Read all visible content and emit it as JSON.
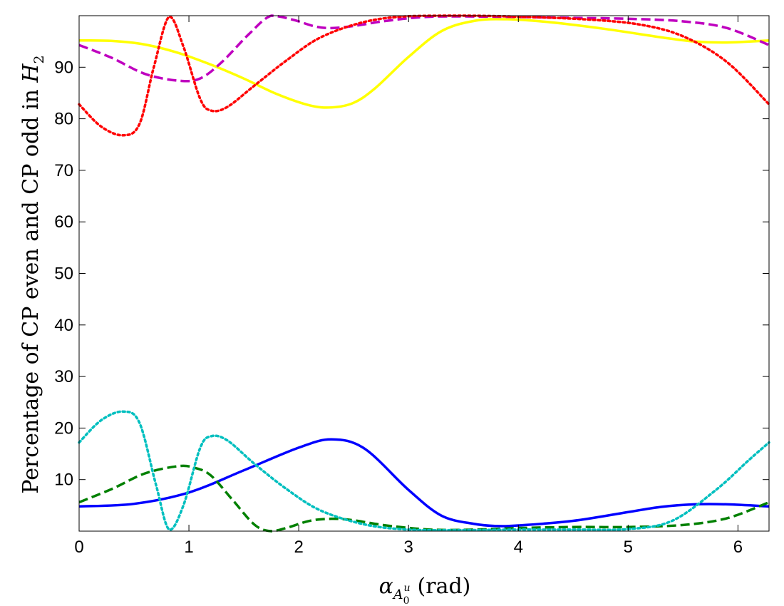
{
  "chart_data": {
    "type": "line",
    "title": "",
    "xlabel": {
      "main": "α",
      "sub": "A",
      "sub_sub": "0",
      "sub_sup": "u",
      "unit": "(rad)"
    },
    "ylabel": {
      "main": "Percentage of CP even and CP odd in ",
      "var": "H",
      "sub": "2"
    },
    "xlim": [
      0,
      6.283
    ],
    "ylim": [
      0,
      100
    ],
    "xticks": [
      0,
      1,
      2,
      3,
      4,
      5,
      6
    ],
    "yticks": [
      10,
      20,
      30,
      40,
      50,
      60,
      70,
      80,
      90
    ],
    "grid": false,
    "legend": "none",
    "series": [
      {
        "color": "#0000ff",
        "style": "solid",
        "points": [
          [
            0,
            4.8
          ],
          [
            0.5,
            5.3
          ],
          [
            1.0,
            7.5
          ],
          [
            1.5,
            11.8
          ],
          [
            2.0,
            16.2
          ],
          [
            2.3,
            17.8
          ],
          [
            2.6,
            16.0
          ],
          [
            3.0,
            8.0
          ],
          [
            3.3,
            3.0
          ],
          [
            3.6,
            1.4
          ],
          [
            3.8,
            1.0
          ],
          [
            4.0,
            1.1
          ],
          [
            4.5,
            2.0
          ],
          [
            5.0,
            3.7
          ],
          [
            5.3,
            4.7
          ],
          [
            5.6,
            5.2
          ],
          [
            5.9,
            5.2
          ],
          [
            6.283,
            4.8
          ]
        ]
      },
      {
        "color": "#008000",
        "style": "dashed",
        "points": [
          [
            0,
            5.6
          ],
          [
            0.3,
            8.2
          ],
          [
            0.6,
            11.2
          ],
          [
            0.9,
            12.6
          ],
          [
            1.05,
            12.3
          ],
          [
            1.2,
            10.8
          ],
          [
            1.4,
            6.0
          ],
          [
            1.6,
            1.2
          ],
          [
            1.75,
            0.0
          ],
          [
            1.9,
            0.7
          ],
          [
            2.1,
            2.0
          ],
          [
            2.3,
            2.4
          ],
          [
            2.5,
            2.1
          ],
          [
            2.8,
            1.1
          ],
          [
            3.2,
            0.3
          ],
          [
            3.6,
            0.3
          ],
          [
            4.0,
            0.6
          ],
          [
            4.5,
            0.8
          ],
          [
            5.0,
            0.8
          ],
          [
            5.5,
            1.2
          ],
          [
            5.9,
            2.5
          ],
          [
            6.283,
            5.6
          ]
        ]
      },
      {
        "color": "#00bfbf",
        "style": "dotted",
        "points": [
          [
            0,
            17.2
          ],
          [
            0.2,
            21.5
          ],
          [
            0.4,
            23.2
          ],
          [
            0.55,
            21.0
          ],
          [
            0.7,
            9.0
          ],
          [
            0.82,
            0.3
          ],
          [
            0.95,
            5.0
          ],
          [
            1.1,
            16.0
          ],
          [
            1.2,
            18.4
          ],
          [
            1.35,
            17.6
          ],
          [
            1.6,
            13.0
          ],
          [
            1.9,
            8.0
          ],
          [
            2.2,
            4.0
          ],
          [
            2.6,
            1.3
          ],
          [
            3.0,
            0.3
          ],
          [
            3.5,
            0.2
          ],
          [
            4.0,
            0.3
          ],
          [
            4.5,
            0.3
          ],
          [
            5.0,
            0.4
          ],
          [
            5.4,
            2.0
          ],
          [
            5.8,
            8.0
          ],
          [
            6.1,
            13.8
          ],
          [
            6.283,
            17.2
          ]
        ]
      },
      {
        "color": "#ffff00",
        "style": "solid",
        "points": [
          [
            0,
            95.2
          ],
          [
            0.3,
            95.1
          ],
          [
            0.6,
            94.4
          ],
          [
            0.9,
            92.8
          ],
          [
            1.2,
            90.5
          ],
          [
            1.5,
            87.8
          ],
          [
            1.8,
            84.8
          ],
          [
            2.1,
            82.6
          ],
          [
            2.3,
            82.2
          ],
          [
            2.5,
            83.1
          ],
          [
            2.7,
            86.0
          ],
          [
            3.0,
            92.0
          ],
          [
            3.3,
            97.0
          ],
          [
            3.6,
            99.0
          ],
          [
            3.9,
            99.3
          ],
          [
            4.3,
            98.7
          ],
          [
            4.8,
            97.4
          ],
          [
            5.3,
            95.8
          ],
          [
            5.6,
            95.0
          ],
          [
            5.9,
            94.8
          ],
          [
            6.283,
            95.2
          ]
        ]
      },
      {
        "color": "#bf00bf",
        "style": "dashed",
        "points": [
          [
            0,
            94.3
          ],
          [
            0.3,
            91.8
          ],
          [
            0.6,
            88.7
          ],
          [
            0.9,
            87.4
          ],
          [
            1.1,
            87.8
          ],
          [
            1.3,
            91.0
          ],
          [
            1.55,
            96.5
          ],
          [
            1.75,
            100.0
          ],
          [
            1.95,
            99.2
          ],
          [
            2.15,
            97.9
          ],
          [
            2.3,
            97.6
          ],
          [
            2.5,
            98.0
          ],
          [
            2.8,
            99.0
          ],
          [
            3.2,
            99.8
          ],
          [
            3.8,
            99.8
          ],
          [
            4.4,
            99.6
          ],
          [
            5.0,
            99.4
          ],
          [
            5.5,
            98.9
          ],
          [
            5.9,
            97.6
          ],
          [
            6.283,
            94.3
          ]
        ]
      },
      {
        "color": "#ff0000",
        "style": "dotted",
        "points": [
          [
            0,
            82.8
          ],
          [
            0.2,
            78.5
          ],
          [
            0.4,
            76.8
          ],
          [
            0.55,
            79.0
          ],
          [
            0.68,
            90.0
          ],
          [
            0.82,
            99.8
          ],
          [
            0.95,
            94.0
          ],
          [
            1.1,
            84.0
          ],
          [
            1.2,
            81.6
          ],
          [
            1.35,
            82.3
          ],
          [
            1.6,
            86.5
          ],
          [
            1.9,
            91.5
          ],
          [
            2.2,
            95.8
          ],
          [
            2.6,
            98.8
          ],
          [
            3.0,
            99.9
          ],
          [
            3.5,
            100.0
          ],
          [
            4.0,
            99.8
          ],
          [
            4.6,
            99.3
          ],
          [
            5.1,
            98.3
          ],
          [
            5.5,
            96.0
          ],
          [
            5.9,
            91.0
          ],
          [
            6.283,
            82.8
          ]
        ]
      }
    ]
  }
}
